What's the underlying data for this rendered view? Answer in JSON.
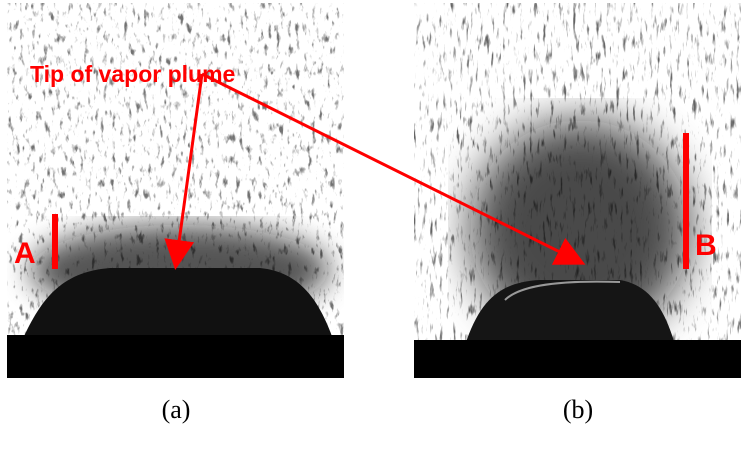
{
  "annotation": "Tip of vapor plume",
  "panels": [
    {
      "caption": "(a)",
      "marker": "A"
    },
    {
      "caption": "(b)",
      "marker": "B"
    }
  ]
}
